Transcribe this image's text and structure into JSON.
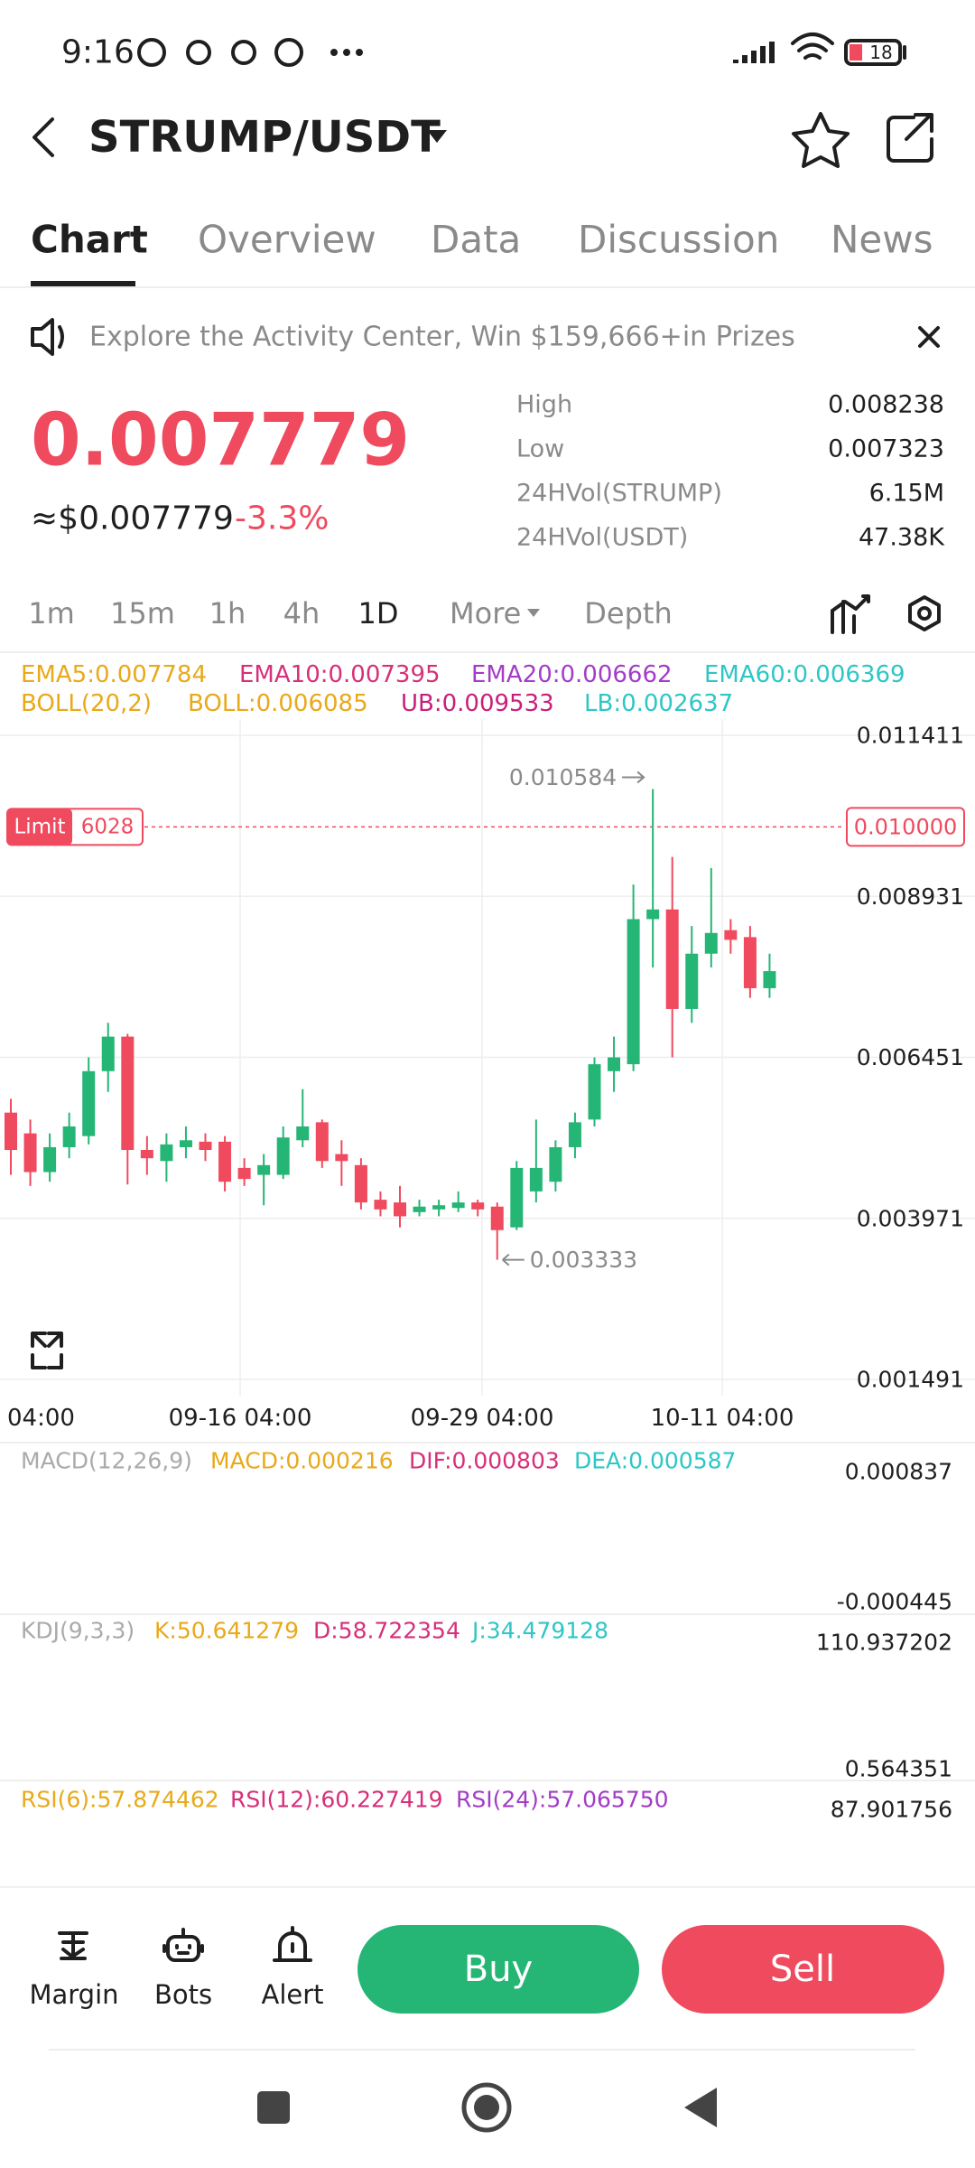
{
  "status_bar": {
    "time": "9:16",
    "battery": "18"
  },
  "header": {
    "title": "STRUMP/USDT"
  },
  "tabs": [
    "Chart",
    "Overview",
    "Data",
    "Discussion",
    "News"
  ],
  "banner": {
    "text": "Explore the Activity Center, Win $159,666+in Prizes"
  },
  "price": {
    "last": "0.007779",
    "approx": "≈$0.007779",
    "change": "-3.3%"
  },
  "stats": [
    {
      "label": "High",
      "value": "0.008238"
    },
    {
      "label": "Low",
      "value": "0.007323"
    },
    {
      "label": "24HVol(STRUMP)",
      "value": "6.15M"
    },
    {
      "label": "24HVol(USDT)",
      "value": "47.38K"
    }
  ],
  "timeframes": [
    "1m",
    "15m",
    "1h",
    "4h",
    "1D",
    "More",
    "Depth"
  ],
  "indicators": {
    "ema": [
      "EMA5:0.007784",
      "EMA10:0.007395",
      "EMA20:0.006662",
      "EMA60:0.006369"
    ],
    "boll": [
      "BOLL(20,2)",
      "BOLL:0.006085",
      "UB:0.009533",
      "LB:0.002637"
    ]
  },
  "chart_data": {
    "type": "candlestick",
    "ylim": [
      0.001491,
      0.011411
    ],
    "yticks": [
      0.011411,
      0.008931,
      0.006451,
      0.003971,
      0.001491
    ],
    "x_labels": [
      "04:00",
      "09-16 04:00",
      "09-29 04:00",
      "10-11 04:00"
    ],
    "up_color": "#25b676",
    "down_color": "#ef4a5e",
    "high_label": "0.010584",
    "low_label": "0.003333",
    "limit_order": {
      "label": "Limit",
      "amount": "6028",
      "price": 0.01,
      "price_label": "0.010000"
    },
    "candles": [
      {
        "open": 0.0056,
        "high": 0.005812,
        "low": 0.004641,
        "close": 0.005025
      },
      {
        "open": 0.00528,
        "high": 0.005493,
        "low": 0.004471,
        "close": 0.004684
      },
      {
        "open": 0.004684,
        "high": 0.00528,
        "low": 0.004535,
        "close": 0.005067
      },
      {
        "open": 0.005067,
        "high": 0.0056,
        "low": 0.004897,
        "close": 0.005387
      },
      {
        "open": 0.005238,
        "high": 0.006451,
        "low": 0.00511,
        "close": 0.006238
      },
      {
        "open": 0.006238,
        "high": 0.006983,
        "low": 0.005919,
        "close": 0.00677
      },
      {
        "open": 0.00677,
        "high": 0.006813,
        "low": 0.004492,
        "close": 0.005025
      },
      {
        "open": 0.005025,
        "high": 0.005238,
        "low": 0.004641,
        "close": 0.004897
      },
      {
        "open": 0.004854,
        "high": 0.00528,
        "low": 0.004535,
        "close": 0.00511
      },
      {
        "open": 0.005067,
        "high": 0.005387,
        "low": 0.004897,
        "close": 0.005174
      },
      {
        "open": 0.005152,
        "high": 0.00528,
        "low": 0.004854,
        "close": 0.005025
      },
      {
        "open": 0.005152,
        "high": 0.005238,
        "low": 0.004386,
        "close": 0.004535
      },
      {
        "open": 0.004748,
        "high": 0.004897,
        "low": 0.004471,
        "close": 0.004578
      },
      {
        "open": 0.004641,
        "high": 0.004961,
        "low": 0.004173,
        "close": 0.004791
      },
      {
        "open": 0.004641,
        "high": 0.005387,
        "low": 0.004578,
        "close": 0.005217
      },
      {
        "open": 0.005174,
        "high": 0.005961,
        "low": 0.005067,
        "close": 0.005387
      },
      {
        "open": 0.005451,
        "high": 0.005493,
        "low": 0.004748,
        "close": 0.004854
      },
      {
        "open": 0.004961,
        "high": 0.005174,
        "low": 0.004471,
        "close": 0.004854
      },
      {
        "open": 0.004791,
        "high": 0.004897,
        "low": 0.004109,
        "close": 0.004216
      },
      {
        "open": 0.004258,
        "high": 0.004386,
        "low": 0.004003,
        "close": 0.004109
      },
      {
        "open": 0.004216,
        "high": 0.004471,
        "low": 0.003832,
        "close": 0.004003
      },
      {
        "open": 0.004067,
        "high": 0.004258,
        "low": 0.004003,
        "close": 0.004152
      },
      {
        "open": 0.004109,
        "high": 0.004258,
        "low": 0.004003,
        "close": 0.004173
      },
      {
        "open": 0.004131,
        "high": 0.004386,
        "low": 0.004067,
        "close": 0.004216
      },
      {
        "open": 0.004216,
        "high": 0.004258,
        "low": 0.004003,
        "close": 0.004109
      },
      {
        "open": 0.004152,
        "high": 0.004216,
        "low": 0.003333,
        "close": 0.00379
      },
      {
        "open": 0.003832,
        "high": 0.004854,
        "low": 0.00379,
        "close": 0.004748
      },
      {
        "open": 0.004386,
        "high": 0.005493,
        "low": 0.004216,
        "close": 0.004748
      },
      {
        "open": 0.004535,
        "high": 0.005174,
        "low": 0.004386,
        "close": 0.005067
      },
      {
        "open": 0.005067,
        "high": 0.0056,
        "low": 0.004897,
        "close": 0.005451
      },
      {
        "open": 0.005493,
        "high": 0.006451,
        "low": 0.005387,
        "close": 0.006345
      },
      {
        "open": 0.006238,
        "high": 0.00677,
        "low": 0.005919,
        "close": 0.006451
      },
      {
        "open": 0.006345,
        "high": 0.009112,
        "low": 0.006238,
        "close": 0.00858
      },
      {
        "open": 0.00858,
        "high": 0.010584,
        "low": 0.007835,
        "close": 0.008729
      },
      {
        "open": 0.008729,
        "high": 0.009538,
        "low": 0.006451,
        "close": 0.007196
      },
      {
        "open": 0.007196,
        "high": 0.008474,
        "low": 0.006983,
        "close": 0.008048
      },
      {
        "open": 0.008048,
        "high": 0.009368,
        "low": 0.007835,
        "close": 0.008367
      },
      {
        "open": 0.00841,
        "high": 0.00858,
        "low": 0.008048,
        "close": 0.008261
      },
      {
        "open": 0.008303,
        "high": 0.008474,
        "low": 0.007367,
        "close": 0.007516
      },
      {
        "open": 0.007516,
        "high": 0.008048,
        "low": 0.007367,
        "close": 0.007779
      }
    ]
  },
  "macd": {
    "labels": [
      "MACD(12,26,9)",
      "MACD:0.000216",
      "DIF:0.000803",
      "DEA:0.000587"
    ],
    "axis": [
      "0.000837",
      "-0.000445"
    ]
  },
  "kdj": {
    "labels": [
      "KDJ(9,3,3)",
      "K:50.641279",
      "D:58.722354",
      "J:34.479128"
    ],
    "axis": [
      "110.937202",
      "0.564351"
    ]
  },
  "rsi": {
    "labels": [
      "RSI(6):57.874462",
      "RSI(12):60.227419",
      "RSI(24):57.065750"
    ],
    "axis": [
      "87.901756"
    ]
  },
  "bottom_bar": {
    "items": [
      "Margin",
      "Bots",
      "Alert"
    ],
    "buy": "Buy",
    "sell": "Sell"
  }
}
